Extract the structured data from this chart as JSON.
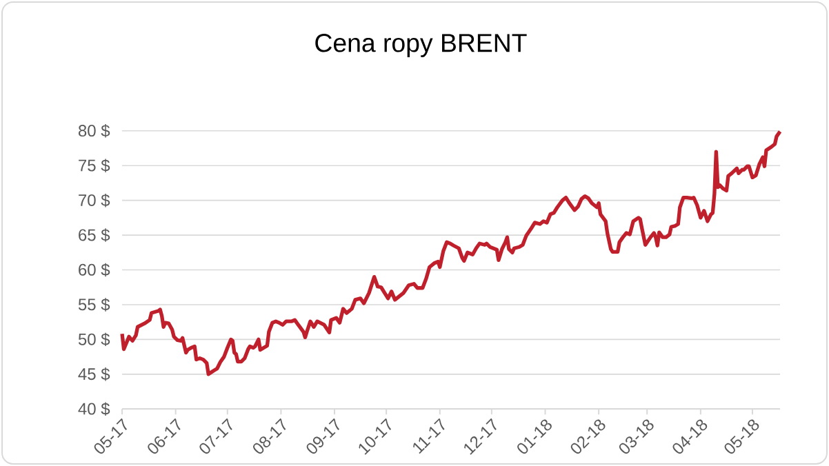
{
  "chart_data": {
    "type": "line",
    "title": "Cena ropy  BRENT",
    "x": [
      "2017-05-01",
      "2017-05-02",
      "2017-05-05",
      "2017-05-07",
      "2017-05-09",
      "2017-05-10",
      "2017-05-14",
      "2017-05-17",
      "2017-05-18",
      "2017-05-22",
      "2017-05-23",
      "2017-05-24",
      "2017-05-25",
      "2017-05-26",
      "2017-05-28",
      "2017-05-30",
      "2017-05-31",
      "2017-06-02",
      "2017-06-04",
      "2017-06-05",
      "2017-06-07",
      "2017-06-08",
      "2017-06-10",
      "2017-06-12",
      "2017-06-13",
      "2017-06-15",
      "2017-06-17",
      "2017-06-19",
      "2017-06-20",
      "2017-06-23",
      "2017-06-25",
      "2017-06-27",
      "2017-06-29",
      "2017-07-01",
      "2017-07-03",
      "2017-07-04",
      "2017-07-05",
      "2017-07-06",
      "2017-07-07",
      "2017-07-09",
      "2017-07-11",
      "2017-07-13",
      "2017-07-14",
      "2017-07-16",
      "2017-07-17",
      "2017-07-19",
      "2017-07-20",
      "2017-07-22",
      "2017-07-24",
      "2017-07-25",
      "2017-07-27",
      "2017-07-29",
      "2017-07-31",
      "2017-08-02",
      "2017-08-04",
      "2017-08-07",
      "2017-08-09",
      "2017-08-11",
      "2017-08-14",
      "2017-08-15",
      "2017-08-16",
      "2017-08-18",
      "2017-08-20",
      "2017-08-22",
      "2017-08-26",
      "2017-08-29",
      "2017-08-30",
      "2017-09-02",
      "2017-09-04",
      "2017-09-06",
      "2017-09-08",
      "2017-09-11",
      "2017-09-13",
      "2017-09-16",
      "2017-09-18",
      "2017-09-21",
      "2017-09-24",
      "2017-09-26",
      "2017-09-28",
      "2017-09-30",
      "2017-10-02",
      "2017-10-04",
      "2017-10-06",
      "2017-10-08",
      "2017-10-11",
      "2017-10-14",
      "2017-10-17",
      "2017-10-19",
      "2017-10-22",
      "2017-10-24",
      "2017-10-26",
      "2017-10-29",
      "2017-10-31",
      "2017-11-01",
      "2017-11-03",
      "2017-11-05",
      "2017-11-07",
      "2017-11-09",
      "2017-11-12",
      "2017-11-14",
      "2017-11-15",
      "2017-11-17",
      "2017-11-20",
      "2017-11-22",
      "2017-11-24",
      "2017-11-27",
      "2017-11-28",
      "2017-11-30",
      "2017-12-02",
      "2017-12-04",
      "2017-12-05",
      "2017-12-07",
      "2017-12-09",
      "2017-12-10",
      "2017-12-11",
      "2017-12-13",
      "2017-12-14",
      "2017-12-17",
      "2017-12-19",
      "2017-12-21",
      "2017-12-24",
      "2017-12-26",
      "2017-12-29",
      "2017-12-31",
      "2018-01-02",
      "2018-01-04",
      "2018-01-06",
      "2018-01-08",
      "2018-01-11",
      "2018-01-13",
      "2018-01-15",
      "2018-01-18",
      "2018-01-20",
      "2018-01-22",
      "2018-01-24",
      "2018-01-26",
      "2018-01-28",
      "2018-01-31",
      "2018-02-01",
      "2018-02-02",
      "2018-02-05",
      "2018-02-06",
      "2018-02-08",
      "2018-02-09",
      "2018-02-12",
      "2018-02-13",
      "2018-02-15",
      "2018-02-17",
      "2018-02-19",
      "2018-02-21",
      "2018-02-24",
      "2018-02-25",
      "2018-02-26",
      "2018-02-28",
      "2018-03-03",
      "2018-03-05",
      "2018-03-06",
      "2018-03-07",
      "2018-03-08",
      "2018-03-10",
      "2018-03-12",
      "2018-03-14",
      "2018-03-15",
      "2018-03-17",
      "2018-03-19",
      "2018-03-20",
      "2018-03-22",
      "2018-03-24",
      "2018-03-27",
      "2018-03-28",
      "2018-03-30",
      "2018-04-01",
      "2018-04-03",
      "2018-04-05",
      "2018-04-07",
      "2018-04-08",
      "2018-04-09",
      "2018-04-10",
      "2018-04-11",
      "2018-04-12",
      "2018-04-14",
      "2018-04-16",
      "2018-04-17",
      "2018-04-19",
      "2018-04-22",
      "2018-04-23",
      "2018-04-25",
      "2018-04-26",
      "2018-04-28",
      "2018-04-29",
      "2018-05-01",
      "2018-05-03",
      "2018-05-05",
      "2018-05-07",
      "2018-05-08",
      "2018-05-09",
      "2018-05-12",
      "2018-05-14",
      "2018-05-15",
      "2018-05-17"
    ],
    "series": [
      {
        "color": "#c0202b",
        "values": [
          50.8,
          48.6,
          50.4,
          49.8,
          50.6,
          51.8,
          52.3,
          52.8,
          53.8,
          54.1,
          54.3,
          53.4,
          51.8,
          52.4,
          52.3,
          51.4,
          50.4,
          49.9,
          49.8,
          50.2,
          48.1,
          48.5,
          48.8,
          49.0,
          47.1,
          47.3,
          47.1,
          46.6,
          45.0,
          45.5,
          45.8,
          46.8,
          47.5,
          48.8,
          50.0,
          49.8,
          48.1,
          47.9,
          46.8,
          46.8,
          47.3,
          48.6,
          49.0,
          48.8,
          49.0,
          50.0,
          48.5,
          48.8,
          49.1,
          51.1,
          52.4,
          52.6,
          52.4,
          52.1,
          52.6,
          52.6,
          52.8,
          52.1,
          51.1,
          50.3,
          51.1,
          52.6,
          51.8,
          52.6,
          52.1,
          51.0,
          52.8,
          53.1,
          52.4,
          54.4,
          53.8,
          54.4,
          55.7,
          55.9,
          55.2,
          56.7,
          59.0,
          57.6,
          57.5,
          56.7,
          55.9,
          56.9,
          55.7,
          56.1,
          56.7,
          57.8,
          58.0,
          57.4,
          57.4,
          58.7,
          60.4,
          61.0,
          61.2,
          60.4,
          62.7,
          64.0,
          63.8,
          63.5,
          63.1,
          61.7,
          61.3,
          62.5,
          62.2,
          63.1,
          63.8,
          63.6,
          63.8,
          63.3,
          63.1,
          62.9,
          61.4,
          63.0,
          64.0,
          64.7,
          63.0,
          62.5,
          63.1,
          63.3,
          63.6,
          64.9,
          66.0,
          66.8,
          66.6,
          67.0,
          66.8,
          68.0,
          68.2,
          69.0,
          70.0,
          70.4,
          69.6,
          68.6,
          69.1,
          70.2,
          70.6,
          70.3,
          69.6,
          69.0,
          69.6,
          68.0,
          67.0,
          65.3,
          63.0,
          62.6,
          62.6,
          64.0,
          64.7,
          65.3,
          65.1,
          67.0,
          67.5,
          67.3,
          66.0,
          63.6,
          64.7,
          65.3,
          64.7,
          63.5,
          65.4,
          64.7,
          64.7,
          65.1,
          66.2,
          66.3,
          66.6,
          69.0,
          70.4,
          70.4,
          70.3,
          70.4,
          69.3,
          67.5,
          68.5,
          67.0,
          68.0,
          68.2,
          70.9,
          77.0,
          71.9,
          72.2,
          71.7,
          71.4,
          73.5,
          73.9,
          74.6,
          73.9,
          74.4,
          74.4,
          74.9,
          74.9,
          73.3,
          73.6,
          75.2,
          76.2,
          74.9,
          77.2,
          77.7,
          78.1,
          79.2,
          79.9
        ]
      }
    ],
    "xlim": [
      "2017-05-01",
      "2018-05-17"
    ],
    "xticks": [
      {
        "value": "2017-05-01",
        "label": "05-17"
      },
      {
        "value": "2017-06-01",
        "label": "06-17"
      },
      {
        "value": "2017-07-01",
        "label": "07-17"
      },
      {
        "value": "2017-08-01",
        "label": "08-17"
      },
      {
        "value": "2017-09-01",
        "label": "09-17"
      },
      {
        "value": "2017-10-01",
        "label": "10-17"
      },
      {
        "value": "2017-11-01",
        "label": "11-17"
      },
      {
        "value": "2017-12-01",
        "label": "12-17"
      },
      {
        "value": "2018-01-01",
        "label": "01-18"
      },
      {
        "value": "2018-02-01",
        "label": "02-18"
      },
      {
        "value": "2018-03-01",
        "label": "03-18"
      },
      {
        "value": "2018-04-01",
        "label": "04-18"
      },
      {
        "value": "2018-05-01",
        "label": "05-18"
      }
    ],
    "ylim": [
      40,
      80
    ],
    "yticks": [
      {
        "value": 40,
        "label": "40 $"
      },
      {
        "value": 45,
        "label": "45 $"
      },
      {
        "value": 50,
        "label": "50 $"
      },
      {
        "value": 55,
        "label": "55 $"
      },
      {
        "value": 60,
        "label": "60 $"
      },
      {
        "value": 65,
        "label": "65 $"
      },
      {
        "value": 70,
        "label": "70 $"
      },
      {
        "value": 75,
        "label": "75 $"
      },
      {
        "value": 80,
        "label": "80 $"
      }
    ],
    "grid": "y"
  }
}
